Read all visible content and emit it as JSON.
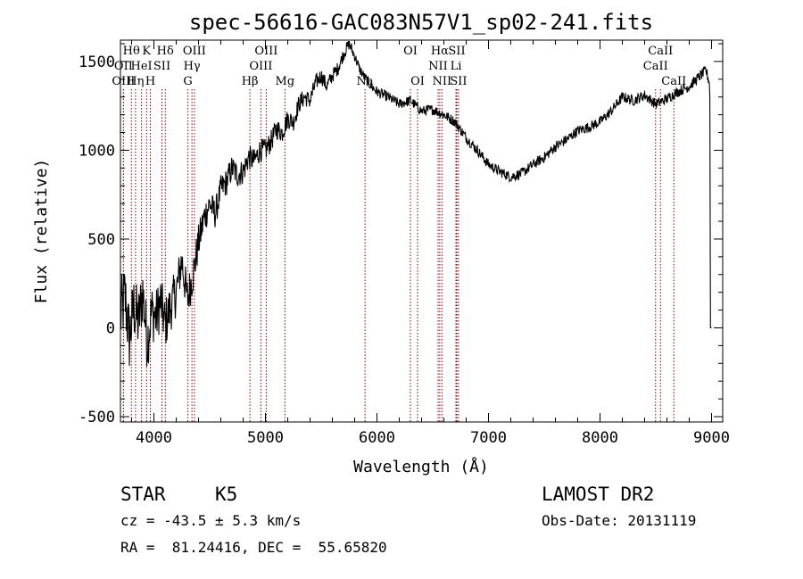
{
  "chart_data": {
    "type": "line",
    "title": "spec-56616-GAC083N57V1_sp02-241.fits",
    "xlabel": "Wavelength (Å)",
    "ylabel": "Flux (relative)",
    "xlim": [
      3700,
      9100
    ],
    "ylim": [
      -530,
      1620
    ],
    "x_ticks": [
      4000,
      5000,
      6000,
      7000,
      8000,
      9000
    ],
    "y_ticks": [
      -500,
      0,
      500,
      1000,
      1500
    ],
    "line_color": "#000000",
    "marker_color": "#8b0000",
    "series": [
      {
        "values_x": [
          3700,
          3740,
          3780,
          3820,
          3860,
          3900,
          3940,
          3980,
          4020,
          4060,
          4100,
          4150,
          4200,
          4250,
          4300,
          4350,
          4400,
          4450,
          4500,
          4550,
          4600,
          4650,
          4700,
          4750,
          4800,
          4850,
          4900,
          4950,
          5000,
          5050,
          5100,
          5150,
          5200,
          5250,
          5300,
          5350,
          5400,
          5450,
          5500,
          5550,
          5600,
          5650,
          5700,
          5750,
          5800,
          5850,
          5900,
          5950,
          6000,
          6100,
          6200,
          6300,
          6400,
          6500,
          6600,
          6700,
          6800,
          6900,
          7000,
          7100,
          7200,
          7300,
          7400,
          7500,
          7600,
          7700,
          7800,
          7900,
          8000,
          8100,
          8200,
          8300,
          8400,
          8500,
          8600,
          8700,
          8800,
          8900,
          8950,
          8980,
          8990
        ],
        "values_y": [
          60,
          180,
          -60,
          120,
          30,
          200,
          -80,
          90,
          60,
          150,
          20,
          120,
          200,
          380,
          160,
          300,
          480,
          620,
          700,
          640,
          780,
          820,
          900,
          860,
          880,
          960,
          940,
          1000,
          1000,
          1050,
          1120,
          1100,
          1180,
          1160,
          1260,
          1300,
          1280,
          1380,
          1420,
          1360,
          1420,
          1460,
          1540,
          1600,
          1530,
          1450,
          1400,
          1360,
          1330,
          1300,
          1260,
          1280,
          1220,
          1230,
          1200,
          1160,
          1070,
          1000,
          920,
          880,
          850,
          870,
          920,
          960,
          1020,
          1060,
          1110,
          1130,
          1160,
          1220,
          1300,
          1280,
          1310,
          1260,
          1290,
          1330,
          1360,
          1420,
          1450,
          1380,
          0
        ]
      }
    ],
    "line_markers": [
      {
        "label": "Hθ",
        "x": 3798,
        "row": 0
      },
      {
        "label": "OII",
        "x": 3727,
        "row": 1
      },
      {
        "label": "OIII",
        "x": 3727,
        "row": 2
      },
      {
        "label": "K",
        "x": 3934,
        "row": 0
      },
      {
        "label": "HeI",
        "x": 3889,
        "row": 1
      },
      {
        "label": "Hη",
        "x": 3835,
        "row": 2
      },
      {
        "label": "Hδ",
        "x": 4102,
        "row": 0
      },
      {
        "label": "SII",
        "x": 4072,
        "row": 1
      },
      {
        "label": "H",
        "x": 3968,
        "row": 2
      },
      {
        "label": "OIII",
        "x": 4363,
        "row": 0
      },
      {
        "label": "Hγ",
        "x": 4341,
        "row": 1
      },
      {
        "label": "G",
        "x": 4305,
        "row": 2
      },
      {
        "label": "OIII",
        "x": 5007,
        "row": 0
      },
      {
        "label": "OIII",
        "x": 4959,
        "row": 1
      },
      {
        "label": "Hβ",
        "x": 4861,
        "row": 2
      },
      {
        "label": "Mg",
        "x": 5175,
        "row": 2
      },
      {
        "label": "Na",
        "x": 5893,
        "row": 2
      },
      {
        "label": "OI",
        "x": 6300,
        "row": 0
      },
      {
        "label": "OI",
        "x": 6364,
        "row": 2
      },
      {
        "label": "Hα",
        "x": 6563,
        "row": 0
      },
      {
        "label": "SII",
        "x": 6716,
        "row": 0
      },
      {
        "label": "NII",
        "x": 6548,
        "row": 1
      },
      {
        "label": "Li",
        "x": 6708,
        "row": 1
      },
      {
        "label": "NII",
        "x": 6583,
        "row": 2
      },
      {
        "label": "SII",
        "x": 6731,
        "row": 2
      },
      {
        "label": "CaII",
        "x": 8542,
        "row": 0
      },
      {
        "label": "CaII",
        "x": 8498,
        "row": 1
      },
      {
        "label": "CaII",
        "x": 8662,
        "row": 2
      }
    ]
  },
  "info": {
    "class_label": "STAR",
    "subclass_label": "K5",
    "survey": "LAMOST DR2",
    "cz": "cz = -43.5 ± 5.3 km/s",
    "obs_date": "Obs-Date: 20131119",
    "coords": "RA =  81.24416, DEC =  55.65820"
  }
}
